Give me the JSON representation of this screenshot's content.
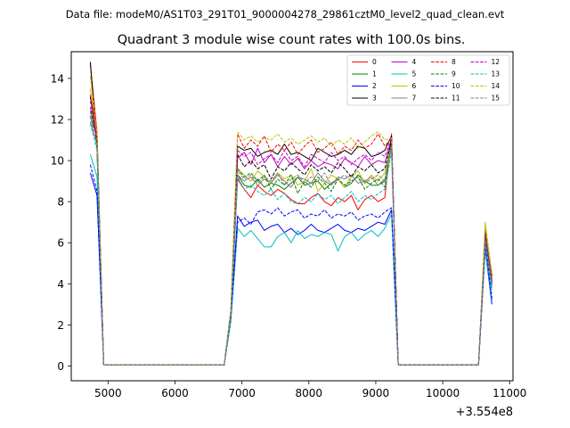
{
  "chart_data": {
    "type": "line",
    "suptitle": "Data file: modeM0/AS1T03_291T01_9000004278_29861cztM0_level2_quad_clean.evt",
    "title": "Quadrant 3 module wise count rates with 100.0s bins.",
    "xlabel": "",
    "ylabel": "",
    "x_offset_label": "+3.554e8",
    "xlim": [
      4450,
      11050
    ],
    "ylim": [
      -0.72,
      15.3
    ],
    "xticks": [
      5000,
      6000,
      7000,
      8000,
      9000,
      10000,
      11000
    ],
    "yticks": [
      0,
      2,
      4,
      6,
      8,
      10,
      12,
      14
    ],
    "grid": false,
    "legend_position": "top-right",
    "legend_columns": 4,
    "x": [
      4735,
      4835,
      4935,
      5035,
      5135,
      5235,
      5335,
      5435,
      5535,
      5635,
      5735,
      5835,
      5935,
      6035,
      6135,
      6235,
      6335,
      6435,
      6535,
      6635,
      6735,
      6835,
      6935,
      7035,
      7135,
      7235,
      7335,
      7435,
      7535,
      7635,
      7735,
      7835,
      7935,
      8035,
      8135,
      8235,
      8335,
      8435,
      8535,
      8635,
      8735,
      8835,
      8935,
      9035,
      9135,
      9235,
      9335,
      9435,
      9535,
      9635,
      9735,
      9835,
      9935,
      10035,
      10135,
      10235,
      10335,
      10435,
      10535,
      10635,
      10735
    ],
    "series": [
      {
        "name": "0",
        "color": "#ff0000",
        "dash": false,
        "values": [
          14.7,
          11.4,
          0.05,
          0.05,
          0.05,
          0.05,
          0.05,
          0.05,
          0.05,
          0.05,
          0.05,
          0.05,
          0.05,
          0.05,
          0.05,
          0.05,
          0.05,
          0.05,
          0.05,
          0.05,
          0.05,
          2.5,
          9.1,
          8.6,
          8.2,
          8.8,
          8.5,
          8.3,
          8.6,
          8.4,
          8.1,
          7.9,
          7.9,
          8.2,
          8.4,
          8.0,
          7.8,
          8.2,
          8.0,
          8.3,
          7.6,
          8.1,
          8.3,
          8.0,
          8.2,
          11.3,
          0.05,
          0.05,
          0.05,
          0.05,
          0.05,
          0.05,
          0.05,
          0.05,
          0.05,
          0.05,
          0.05,
          0.05,
          0.05,
          6.5,
          4.3
        ]
      },
      {
        "name": "1",
        "color": "#008000",
        "dash": false,
        "values": [
          12.1,
          11.2,
          0.05,
          0.05,
          0.05,
          0.05,
          0.05,
          0.05,
          0.05,
          0.05,
          0.05,
          0.05,
          0.05,
          0.05,
          0.05,
          0.05,
          0.05,
          0.05,
          0.05,
          0.05,
          0.05,
          2.5,
          9.3,
          8.8,
          8.7,
          9.1,
          8.7,
          8.9,
          8.8,
          8.6,
          8.9,
          9.2,
          8.8,
          8.9,
          9.0,
          8.6,
          8.9,
          9.1,
          8.7,
          8.9,
          9.3,
          9.0,
          8.8,
          8.8,
          9.0,
          11.1,
          0.05,
          0.05,
          0.05,
          0.05,
          0.05,
          0.05,
          0.05,
          0.05,
          0.05,
          0.05,
          0.05,
          0.05,
          0.05,
          6.0,
          3.9
        ]
      },
      {
        "name": "2",
        "color": "#0000ff",
        "dash": false,
        "values": [
          9.4,
          8.3,
          0.05,
          0.05,
          0.05,
          0.05,
          0.05,
          0.05,
          0.05,
          0.05,
          0.05,
          0.05,
          0.05,
          0.05,
          0.05,
          0.05,
          0.05,
          0.05,
          0.05,
          0.05,
          0.05,
          2.3,
          7.3,
          6.8,
          7.0,
          7.1,
          6.6,
          6.8,
          6.9,
          6.5,
          6.7,
          6.4,
          6.6,
          6.9,
          6.6,
          6.5,
          6.7,
          6.9,
          6.6,
          6.5,
          6.7,
          6.6,
          6.8,
          7.0,
          6.9,
          7.6,
          0.05,
          0.05,
          0.05,
          0.05,
          0.05,
          0.05,
          0.05,
          0.05,
          0.05,
          0.05,
          0.05,
          0.05,
          0.05,
          5.7,
          3.0
        ]
      },
      {
        "name": "3",
        "color": "#000000",
        "dash": false,
        "values": [
          14.8,
          10.5,
          0.05,
          0.05,
          0.05,
          0.05,
          0.05,
          0.05,
          0.05,
          0.05,
          0.05,
          0.05,
          0.05,
          0.05,
          0.05,
          0.05,
          0.05,
          0.05,
          0.05,
          0.05,
          0.05,
          2.7,
          10.7,
          10.5,
          10.6,
          10.2,
          10.4,
          10.5,
          10.3,
          10.8,
          10.3,
          10.4,
          10.2,
          10.0,
          10.6,
          10.4,
          10.2,
          10.3,
          10.5,
          10.3,
          10.7,
          10.6,
          10.2,
          10.3,
          10.5,
          11.2,
          0.05,
          0.05,
          0.05,
          0.05,
          0.05,
          0.05,
          0.05,
          0.05,
          0.05,
          0.05,
          0.05,
          0.05,
          0.05,
          6.6,
          4.4
        ]
      },
      {
        "name": "4",
        "color": "#bf00bf",
        "dash": false,
        "values": [
          12.6,
          11.0,
          0.05,
          0.05,
          0.05,
          0.05,
          0.05,
          0.05,
          0.05,
          0.05,
          0.05,
          0.05,
          0.05,
          0.05,
          0.05,
          0.05,
          0.05,
          0.05,
          0.05,
          0.05,
          0.05,
          2.6,
          10.1,
          10.4,
          9.8,
          10.6,
          9.9,
          10.3,
          9.7,
          10.2,
          9.8,
          10.1,
          9.6,
          10.0,
          9.7,
          9.9,
          9.8,
          9.6,
          10.1,
          9.9,
          9.7,
          10.2,
          9.8,
          10.0,
          9.9,
          11.0,
          0.05,
          0.05,
          0.05,
          0.05,
          0.05,
          0.05,
          0.05,
          0.05,
          0.05,
          0.05,
          0.05,
          0.05,
          0.05,
          6.3,
          4.0
        ]
      },
      {
        "name": "5",
        "color": "#00bfbf",
        "dash": false,
        "values": [
          10.3,
          9.2,
          0.05,
          0.05,
          0.05,
          0.05,
          0.05,
          0.05,
          0.05,
          0.05,
          0.05,
          0.05,
          0.05,
          0.05,
          0.05,
          0.05,
          0.05,
          0.05,
          0.05,
          0.05,
          0.05,
          2.2,
          6.7,
          6.3,
          6.6,
          6.2,
          5.8,
          5.8,
          6.3,
          6.5,
          6.0,
          6.6,
          6.2,
          6.4,
          6.3,
          6.5,
          6.4,
          5.6,
          6.3,
          6.5,
          6.1,
          6.4,
          6.6,
          6.3,
          6.7,
          7.4,
          0.05,
          0.05,
          0.05,
          0.05,
          0.05,
          0.05,
          0.05,
          0.05,
          0.05,
          0.05,
          0.05,
          0.05,
          0.05,
          5.8,
          3.2
        ]
      },
      {
        "name": "6",
        "color": "#bfbf00",
        "dash": false,
        "values": [
          13.5,
          11.0,
          0.05,
          0.05,
          0.05,
          0.05,
          0.05,
          0.05,
          0.05,
          0.05,
          0.05,
          0.05,
          0.05,
          0.05,
          0.05,
          0.05,
          0.05,
          0.05,
          0.05,
          0.05,
          0.05,
          2.6,
          9.6,
          9.3,
          9.0,
          9.5,
          9.2,
          8.9,
          9.4,
          9.1,
          9.3,
          8.8,
          9.0,
          9.6,
          8.5,
          8.9,
          9.3,
          9.1,
          8.7,
          9.2,
          9.5,
          8.9,
          9.3,
          9.0,
          9.4,
          10.8,
          0.05,
          0.05,
          0.05,
          0.05,
          0.05,
          0.05,
          0.05,
          0.05,
          0.05,
          0.05,
          0.05,
          0.05,
          0.05,
          6.9,
          4.2
        ]
      },
      {
        "name": "7",
        "color": "#808080",
        "dash": false,
        "values": [
          11.9,
          10.8,
          0.05,
          0.05,
          0.05,
          0.05,
          0.05,
          0.05,
          0.05,
          0.05,
          0.05,
          0.05,
          0.05,
          0.05,
          0.05,
          0.05,
          0.05,
          0.05,
          0.05,
          0.05,
          0.05,
          2.5,
          9.3,
          9.0,
          9.2,
          8.8,
          9.1,
          8.9,
          9.3,
          9.0,
          8.7,
          9.2,
          9.1,
          8.9,
          9.4,
          9.0,
          8.8,
          9.2,
          9.1,
          9.3,
          8.9,
          9.0,
          9.2,
          8.8,
          9.1,
          10.6,
          0.05,
          0.05,
          0.05,
          0.05,
          0.05,
          0.05,
          0.05,
          0.05,
          0.05,
          0.05,
          0.05,
          0.05,
          0.05,
          6.0,
          3.8
        ]
      },
      {
        "name": "8",
        "color": "#ff0000",
        "dash": true,
        "values": [
          13.2,
          11.2,
          0.05,
          0.05,
          0.05,
          0.05,
          0.05,
          0.05,
          0.05,
          0.05,
          0.05,
          0.05,
          0.05,
          0.05,
          0.05,
          0.05,
          0.05,
          0.05,
          0.05,
          0.05,
          0.05,
          2.7,
          11.3,
          10.6,
          11.0,
          10.7,
          11.2,
          10.4,
          10.8,
          10.5,
          10.9,
          10.3,
          10.7,
          11.0,
          10.4,
          10.6,
          10.9,
          10.3,
          10.7,
          10.5,
          11.0,
          10.6,
          10.8,
          11.3,
          10.7,
          11.1,
          0.05,
          0.05,
          0.05,
          0.05,
          0.05,
          0.05,
          0.05,
          0.05,
          0.05,
          0.05,
          0.05,
          0.05,
          0.05,
          6.4,
          4.2
        ]
      },
      {
        "name": "9",
        "color": "#008000",
        "dash": true,
        "values": [
          12.4,
          11.1,
          0.05,
          0.05,
          0.05,
          0.05,
          0.05,
          0.05,
          0.05,
          0.05,
          0.05,
          0.05,
          0.05,
          0.05,
          0.05,
          0.05,
          0.05,
          0.05,
          0.05,
          0.05,
          0.05,
          2.5,
          9.6,
          9.2,
          9.4,
          9.0,
          9.3,
          8.6,
          9.1,
          8.8,
          9.3,
          8.4,
          9.0,
          8.7,
          9.2,
          8.9,
          8.5,
          9.1,
          8.8,
          9.0,
          9.2,
          8.6,
          8.9,
          9.1,
          8.7,
          10.9,
          0.05,
          0.05,
          0.05,
          0.05,
          0.05,
          0.05,
          0.05,
          0.05,
          0.05,
          0.05,
          0.05,
          0.05,
          0.05,
          6.2,
          4.0
        ]
      },
      {
        "name": "10",
        "color": "#0000ff",
        "dash": true,
        "values": [
          9.8,
          8.5,
          0.05,
          0.05,
          0.05,
          0.05,
          0.05,
          0.05,
          0.05,
          0.05,
          0.05,
          0.05,
          0.05,
          0.05,
          0.05,
          0.05,
          0.05,
          0.05,
          0.05,
          0.05,
          0.05,
          2.3,
          7.0,
          7.2,
          6.9,
          7.5,
          7.6,
          7.4,
          7.7,
          7.3,
          7.5,
          7.6,
          7.2,
          7.4,
          7.3,
          7.6,
          7.2,
          7.4,
          7.3,
          7.5,
          7.1,
          7.3,
          7.4,
          7.2,
          7.5,
          7.7,
          0.05,
          0.05,
          0.05,
          0.05,
          0.05,
          0.05,
          0.05,
          0.05,
          0.05,
          0.05,
          0.05,
          0.05,
          0.05,
          6.0,
          3.3
        ]
      },
      {
        "name": "11",
        "color": "#000000",
        "dash": true,
        "values": [
          13.1,
          10.9,
          0.05,
          0.05,
          0.05,
          0.05,
          0.05,
          0.05,
          0.05,
          0.05,
          0.05,
          0.05,
          0.05,
          0.05,
          0.05,
          0.05,
          0.05,
          0.05,
          0.05,
          0.05,
          0.05,
          2.6,
          10.3,
          9.7,
          10.0,
          9.6,
          9.8,
          9.1,
          9.7,
          9.5,
          9.9,
          9.6,
          9.3,
          9.8,
          9.5,
          9.7,
          9.4,
          9.9,
          9.6,
          9.2,
          9.7,
          9.5,
          9.8,
          9.4,
          9.6,
          11.0,
          0.05,
          0.05,
          0.05,
          0.05,
          0.05,
          0.05,
          0.05,
          0.05,
          0.05,
          0.05,
          0.05,
          0.05,
          0.05,
          6.3,
          4.1
        ]
      },
      {
        "name": "12",
        "color": "#bf00bf",
        "dash": true,
        "values": [
          12.9,
          11.0,
          0.05,
          0.05,
          0.05,
          0.05,
          0.05,
          0.05,
          0.05,
          0.05,
          0.05,
          0.05,
          0.05,
          0.05,
          0.05,
          0.05,
          0.05,
          0.05,
          0.05,
          0.05,
          0.05,
          2.6,
          10.5,
          10.2,
          10.4,
          9.8,
          10.1,
          10.3,
          9.9,
          10.5,
          10.0,
          10.2,
          9.7,
          10.3,
          10.1,
          9.9,
          10.4,
          10.0,
          10.2,
          9.8,
          10.1,
          10.3,
          10.0,
          10.4,
          10.2,
          11.1,
          0.05,
          0.05,
          0.05,
          0.05,
          0.05,
          0.05,
          0.05,
          0.05,
          0.05,
          0.05,
          0.05,
          0.05,
          0.05,
          6.4,
          4.1
        ]
      },
      {
        "name": "13",
        "color": "#00bfbf",
        "dash": true,
        "values": [
          11.8,
          10.5,
          0.05,
          0.05,
          0.05,
          0.05,
          0.05,
          0.05,
          0.05,
          0.05,
          0.05,
          0.05,
          0.05,
          0.05,
          0.05,
          0.05,
          0.05,
          0.05,
          0.05,
          0.05,
          0.05,
          2.4,
          9.2,
          8.6,
          8.8,
          8.5,
          8.3,
          8.6,
          8.1,
          8.4,
          8.0,
          7.9,
          8.2,
          8.0,
          8.4,
          8.1,
          8.3,
          7.9,
          8.2,
          8.5,
          8.0,
          8.3,
          8.1,
          8.4,
          8.6,
          10.4,
          0.05,
          0.05,
          0.05,
          0.05,
          0.05,
          0.05,
          0.05,
          0.05,
          0.05,
          0.05,
          0.05,
          0.05,
          0.05,
          6.1,
          3.7
        ]
      },
      {
        "name": "14",
        "color": "#bfbf00",
        "dash": true,
        "values": [
          14.1,
          11.3,
          0.05,
          0.05,
          0.05,
          0.05,
          0.05,
          0.05,
          0.05,
          0.05,
          0.05,
          0.05,
          0.05,
          0.05,
          0.05,
          0.05,
          0.05,
          0.05,
          0.05,
          0.05,
          0.05,
          2.8,
          11.4,
          11.0,
          11.2,
          10.9,
          11.1,
          11.0,
          11.3,
          10.9,
          11.1,
          10.8,
          11.0,
          11.2,
          10.9,
          11.1,
          10.7,
          11.0,
          10.8,
          11.1,
          10.6,
          10.9,
          11.2,
          11.4,
          11.0,
          11.1,
          0.05,
          0.05,
          0.05,
          0.05,
          0.05,
          0.05,
          0.05,
          0.05,
          0.05,
          0.05,
          0.05,
          0.05,
          0.05,
          7.0,
          4.5
        ]
      },
      {
        "name": "15",
        "color": "#808080",
        "dash": true,
        "values": [
          12.2,
          10.7,
          0.05,
          0.05,
          0.05,
          0.05,
          0.05,
          0.05,
          0.05,
          0.05,
          0.05,
          0.05,
          0.05,
          0.05,
          0.05,
          0.05,
          0.05,
          0.05,
          0.05,
          0.05,
          0.05,
          2.5,
          9.5,
          9.1,
          9.3,
          8.9,
          9.2,
          9.0,
          9.4,
          8.8,
          9.1,
          9.3,
          8.9,
          9.2,
          9.0,
          9.4,
          8.8,
          9.1,
          9.3,
          9.0,
          9.2,
          8.9,
          9.1,
          9.3,
          9.0,
          10.7,
          0.05,
          0.05,
          0.05,
          0.05,
          0.05,
          0.05,
          0.05,
          0.05,
          0.05,
          0.05,
          0.05,
          0.05,
          0.05,
          6.1,
          3.9
        ]
      }
    ]
  }
}
